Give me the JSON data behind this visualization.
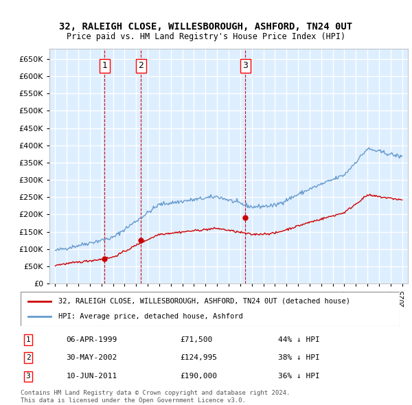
{
  "title1": "32, RALEIGH CLOSE, WILLESBOROUGH, ASHFORD, TN24 0UT",
  "title2": "Price paid vs. HM Land Registry's House Price Index (HPI)",
  "hpi_color": "#6699cc",
  "price_color": "#cc0000",
  "vline_color": "#cc0000",
  "bg_color": "#ddeeff",
  "grid_color": "#ffffff",
  "purchases": [
    {
      "date": 1999.27,
      "price": 71500,
      "label": "1"
    },
    {
      "date": 2002.41,
      "price": 124995,
      "label": "2"
    },
    {
      "date": 2011.44,
      "price": 190000,
      "label": "3"
    }
  ],
  "purchase_dates_str": [
    "06-APR-1999",
    "30-MAY-2002",
    "10-JUN-2011"
  ],
  "purchase_prices_str": [
    "£71,500",
    "£124,995",
    "£190,000"
  ],
  "purchase_pct_str": [
    "44% ↓ HPI",
    "38% ↓ HPI",
    "36% ↓ HPI"
  ],
  "legend_label_red": "32, RALEIGH CLOSE, WILLESBOROUGH, ASHFORD, TN24 0UT (detached house)",
  "legend_label_blue": "HPI: Average price, detached house, Ashford",
  "footer1": "Contains HM Land Registry data © Crown copyright and database right 2024.",
  "footer2": "This data is licensed under the Open Government Licence v3.0.",
  "ylim": [
    0,
    680000
  ],
  "xlim_start": 1994.5,
  "xlim_end": 2025.5
}
